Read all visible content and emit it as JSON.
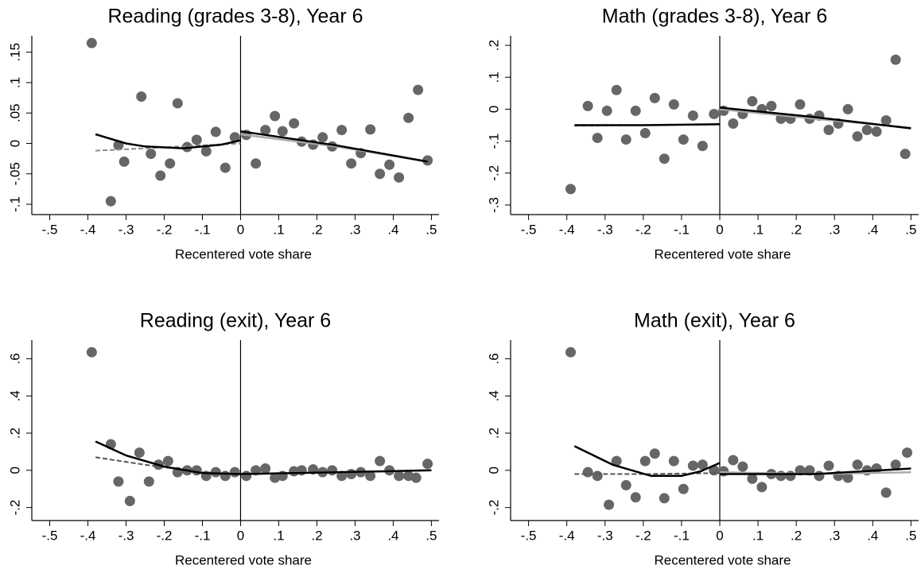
{
  "chart_data": [
    {
      "type": "scatter",
      "title": "Reading (grades 3-8), Year 6",
      "xlabel": "Recentered vote share",
      "point_color": "#666666",
      "xline": 0,
      "xlim": [
        -0.547,
        0.52
      ],
      "ylim": [
        -0.117,
        0.177
      ],
      "xticks": [
        {
          "value": -0.5,
          "label": "-.5"
        },
        {
          "value": -0.4,
          "label": "-.4"
        },
        {
          "value": -0.3,
          "label": "-.3"
        },
        {
          "value": -0.2,
          "label": "-.2"
        },
        {
          "value": -0.1,
          "label": "-.1"
        },
        0,
        {
          "value": 0.1,
          "label": ".1"
        },
        {
          "value": 0.2,
          "label": ".2"
        },
        {
          "value": 0.3,
          "label": ".3"
        },
        {
          "value": 0.4,
          "label": ".4"
        },
        {
          "value": 0.5,
          "label": ".5"
        }
      ],
      "yticks": [
        {
          "value": -0.1,
          "label": "-.1"
        },
        {
          "value": -0.05,
          "label": "-.05"
        },
        0,
        {
          "value": 0.05,
          "label": ".05"
        },
        {
          "value": 0.1,
          "label": ".1"
        },
        {
          "value": 0.15,
          "label": ".15"
        }
      ],
      "x": [
        -0.39,
        -0.34,
        -0.32,
        -0.305,
        -0.26,
        -0.235,
        -0.21,
        -0.185,
        -0.165,
        -0.14,
        -0.115,
        -0.09,
        -0.065,
        -0.04,
        -0.015,
        0.015,
        0.04,
        0.065,
        0.09,
        0.11,
        0.14,
        0.16,
        0.19,
        0.215,
        0.24,
        0.265,
        0.29,
        0.315,
        0.34,
        0.365,
        0.39,
        0.415,
        0.44,
        0.465,
        0.49
      ],
      "y": [
        0.165,
        -0.095,
        -0.003,
        -0.03,
        0.077,
        -0.017,
        -0.053,
        -0.033,
        0.066,
        -0.006,
        0.006,
        -0.013,
        0.019,
        -0.04,
        0.01,
        0.014,
        -0.033,
        0.022,
        0.045,
        0.02,
        0.033,
        0.003,
        -0.002,
        0.01,
        -0.005,
        0.022,
        -0.033,
        -0.016,
        0.023,
        -0.05,
        -0.035,
        -0.056,
        0.042,
        0.088,
        -0.028
      ],
      "fits": [
        {
          "color": "#888888",
          "dash": true,
          "x": [
            -0.38,
            -0.25,
            -0.1,
            0
          ],
          "values": [
            -0.012,
            -0.008,
            -0.003,
            0.0
          ]
        },
        {
          "color": "#aaaaaa",
          "dash": false,
          "x": [
            0,
            0.25,
            0.49
          ],
          "values": [
            0.015,
            -0.005,
            -0.03
          ]
        },
        {
          "color": "#000000",
          "dash": false,
          "x": [
            -0.38,
            -0.3,
            -0.25,
            -0.15,
            -0.05,
            0
          ],
          "values": [
            0.015,
            0.0,
            -0.005,
            -0.008,
            -0.002,
            0.005
          ]
        },
        {
          "color": "#000000",
          "dash": false,
          "x": [
            0,
            0.25,
            0.49
          ],
          "values": [
            0.02,
            -0.003,
            -0.03
          ]
        }
      ]
    },
    {
      "type": "scatter",
      "title": "Math (grades 3-8), Year 6",
      "xlabel": "Recentered vote share",
      "point_color": "#666666",
      "xline": 0,
      "xlim": [
        -0.547,
        0.52
      ],
      "ylim": [
        -0.33,
        0.23
      ],
      "xticks": [
        {
          "value": -0.5,
          "label": "-.5"
        },
        {
          "value": -0.4,
          "label": "-.4"
        },
        {
          "value": -0.3,
          "label": "-.3"
        },
        {
          "value": -0.2,
          "label": "-.2"
        },
        {
          "value": -0.1,
          "label": "-.1"
        },
        0,
        {
          "value": 0.1,
          "label": ".1"
        },
        {
          "value": 0.2,
          "label": ".2"
        },
        {
          "value": 0.3,
          "label": ".3"
        },
        {
          "value": 0.4,
          "label": ".4"
        },
        {
          "value": 0.5,
          "label": ".5"
        }
      ],
      "yticks": [
        {
          "value": -0.3,
          "label": "-.3"
        },
        {
          "value": -0.2,
          "label": "-.2"
        },
        {
          "value": -0.1,
          "label": "-.1"
        },
        0,
        {
          "value": 0.1,
          "label": ".1"
        },
        {
          "value": 0.2,
          "label": ".2"
        }
      ],
      "x": [
        -0.39,
        -0.345,
        -0.32,
        -0.295,
        -0.27,
        -0.245,
        -0.22,
        -0.195,
        -0.17,
        -0.145,
        -0.12,
        -0.095,
        -0.07,
        -0.045,
        -0.015,
        0.01,
        0.035,
        0.06,
        0.085,
        0.11,
        0.135,
        0.16,
        0.185,
        0.21,
        0.235,
        0.26,
        0.285,
        0.31,
        0.335,
        0.36,
        0.385,
        0.41,
        0.435,
        0.46,
        0.485
      ],
      "y": [
        -0.25,
        0.01,
        -0.09,
        -0.005,
        0.06,
        -0.095,
        -0.005,
        -0.075,
        0.035,
        -0.155,
        0.015,
        -0.095,
        -0.02,
        -0.115,
        -0.015,
        -0.005,
        -0.045,
        -0.015,
        0.025,
        0.0,
        0.01,
        -0.03,
        -0.03,
        0.015,
        -0.03,
        -0.02,
        -0.065,
        -0.045,
        0.0,
        -0.085,
        -0.065,
        -0.07,
        -0.035,
        0.155,
        -0.14
      ],
      "fits": [
        {
          "color": "#888888",
          "dash": true,
          "x": [
            -0.38,
            0
          ],
          "values": [
            -0.052,
            -0.048
          ]
        },
        {
          "color": "#aaaaaa",
          "dash": false,
          "x": [
            0,
            0.25,
            0.5
          ],
          "values": [
            0.0,
            -0.03,
            -0.058
          ]
        },
        {
          "color": "#000000",
          "dash": false,
          "x": [
            -0.38,
            -0.2,
            0
          ],
          "values": [
            -0.05,
            -0.05,
            -0.047
          ]
        },
        {
          "color": "#000000",
          "dash": false,
          "x": [
            0,
            0.25,
            0.5
          ],
          "values": [
            0.005,
            -0.025,
            -0.06
          ]
        }
      ]
    },
    {
      "type": "scatter",
      "title": "Reading (exit), Year 6",
      "xlabel": "Recentered vote share",
      "point_color": "#666666",
      "xline": 0,
      "xlim": [
        -0.547,
        0.52
      ],
      "ylim": [
        -0.27,
        0.7
      ],
      "xticks": [
        {
          "value": -0.5,
          "label": "-.5"
        },
        {
          "value": -0.4,
          "label": "-.4"
        },
        {
          "value": -0.3,
          "label": "-.3"
        },
        {
          "value": -0.2,
          "label": "-.2"
        },
        {
          "value": -0.1,
          "label": "-.1"
        },
        0,
        {
          "value": 0.1,
          "label": ".1"
        },
        {
          "value": 0.2,
          "label": ".2"
        },
        {
          "value": 0.3,
          "label": ".3"
        },
        {
          "value": 0.4,
          "label": ".4"
        },
        {
          "value": 0.5,
          "label": ".5"
        }
      ],
      "yticks": [
        {
          "value": -0.2,
          "label": "-.2"
        },
        0,
        {
          "value": 0.2,
          "label": ".2"
        },
        {
          "value": 0.4,
          "label": ".4"
        },
        {
          "value": 0.6,
          "label": ".6"
        }
      ],
      "x": [
        -0.39,
        -0.34,
        -0.32,
        -0.29,
        -0.265,
        -0.24,
        -0.215,
        -0.19,
        -0.165,
        -0.14,
        -0.115,
        -0.09,
        -0.065,
        -0.04,
        -0.015,
        0.015,
        0.04,
        0.065,
        0.09,
        0.11,
        0.14,
        0.16,
        0.19,
        0.215,
        0.24,
        0.265,
        0.29,
        0.315,
        0.34,
        0.365,
        0.39,
        0.415,
        0.44,
        0.46,
        0.49
      ],
      "y": [
        0.635,
        0.14,
        -0.06,
        -0.165,
        0.095,
        -0.06,
        0.03,
        0.05,
        -0.01,
        0.0,
        0.0,
        -0.03,
        -0.01,
        -0.03,
        -0.01,
        -0.03,
        0.0,
        0.01,
        -0.04,
        -0.03,
        -0.005,
        0.0,
        0.005,
        -0.01,
        0.0,
        -0.03,
        -0.02,
        -0.01,
        -0.03,
        0.05,
        0.0,
        -0.03,
        -0.03,
        -0.04,
        0.035
      ],
      "fits": [
        {
          "color": "#555555",
          "dash": true,
          "x": [
            -0.38,
            -0.25,
            -0.1,
            0
          ],
          "values": [
            0.07,
            0.03,
            -0.01,
            -0.02
          ]
        },
        {
          "color": "#aaaaaa",
          "dash": false,
          "x": [
            0,
            0.25,
            0.5
          ],
          "values": [
            -0.02,
            -0.01,
            0.0
          ]
        },
        {
          "color": "#000000",
          "dash": false,
          "x": [
            -0.38,
            -0.3,
            -0.2,
            -0.1,
            0
          ],
          "values": [
            0.155,
            0.08,
            0.02,
            -0.015,
            -0.02
          ]
        },
        {
          "color": "#000000",
          "dash": false,
          "x": [
            0,
            0.25,
            0.5
          ],
          "values": [
            -0.02,
            -0.01,
            0.0
          ]
        }
      ]
    },
    {
      "type": "scatter",
      "title": "Math (exit), Year 6",
      "xlabel": "Recentered vote share",
      "point_color": "#666666",
      "xline": 0,
      "xlim": [
        -0.547,
        0.52
      ],
      "ylim": [
        -0.27,
        0.7
      ],
      "xticks": [
        {
          "value": -0.5,
          "label": "-.5"
        },
        {
          "value": -0.4,
          "label": "-.4"
        },
        {
          "value": -0.3,
          "label": "-.3"
        },
        {
          "value": -0.2,
          "label": "-.2"
        },
        {
          "value": -0.1,
          "label": "-.1"
        },
        0,
        {
          "value": 0.1,
          "label": ".1"
        },
        {
          "value": 0.2,
          "label": ".2"
        },
        {
          "value": 0.3,
          "label": ".3"
        },
        {
          "value": 0.4,
          "label": ".4"
        },
        {
          "value": 0.5,
          "label": ".5"
        }
      ],
      "yticks": [
        {
          "value": -0.2,
          "label": "-.2"
        },
        0,
        {
          "value": 0.2,
          "label": ".2"
        },
        {
          "value": 0.4,
          "label": ".4"
        },
        {
          "value": 0.6,
          "label": ".6"
        }
      ],
      "x": [
        -0.39,
        -0.345,
        -0.32,
        -0.29,
        -0.27,
        -0.245,
        -0.22,
        -0.195,
        -0.17,
        -0.145,
        -0.12,
        -0.095,
        -0.07,
        -0.045,
        -0.015,
        0.01,
        0.035,
        0.06,
        0.085,
        0.11,
        0.135,
        0.16,
        0.185,
        0.21,
        0.235,
        0.26,
        0.285,
        0.31,
        0.335,
        0.36,
        0.385,
        0.41,
        0.435,
        0.46,
        0.49
      ],
      "y": [
        0.635,
        -0.01,
        -0.03,
        -0.185,
        0.05,
        -0.08,
        -0.145,
        0.05,
        0.09,
        -0.15,
        0.05,
        -0.1,
        0.025,
        0.03,
        0.0,
        -0.005,
        0.055,
        0.02,
        -0.045,
        -0.09,
        -0.02,
        -0.03,
        -0.03,
        0.0,
        0.0,
        -0.03,
        0.025,
        -0.03,
        -0.04,
        0.03,
        0.0,
        0.01,
        -0.12,
        0.03,
        0.095
      ],
      "fits": [
        {
          "color": "#555555",
          "dash": true,
          "x": [
            -0.38,
            -0.2,
            0
          ],
          "values": [
            -0.02,
            -0.02,
            -0.015
          ]
        },
        {
          "color": "#aaaaaa",
          "dash": false,
          "x": [
            0,
            0.25,
            0.5
          ],
          "values": [
            -0.01,
            -0.02,
            -0.01
          ]
        },
        {
          "color": "#000000",
          "dash": false,
          "x": [
            -0.38,
            -0.28,
            -0.18,
            -0.1,
            -0.05,
            0
          ],
          "values": [
            0.13,
            0.03,
            -0.03,
            -0.03,
            -0.005,
            0.04
          ]
        },
        {
          "color": "#000000",
          "dash": false,
          "x": [
            0,
            0.25,
            0.5
          ],
          "values": [
            -0.02,
            -0.02,
            0.01
          ]
        }
      ]
    }
  ]
}
